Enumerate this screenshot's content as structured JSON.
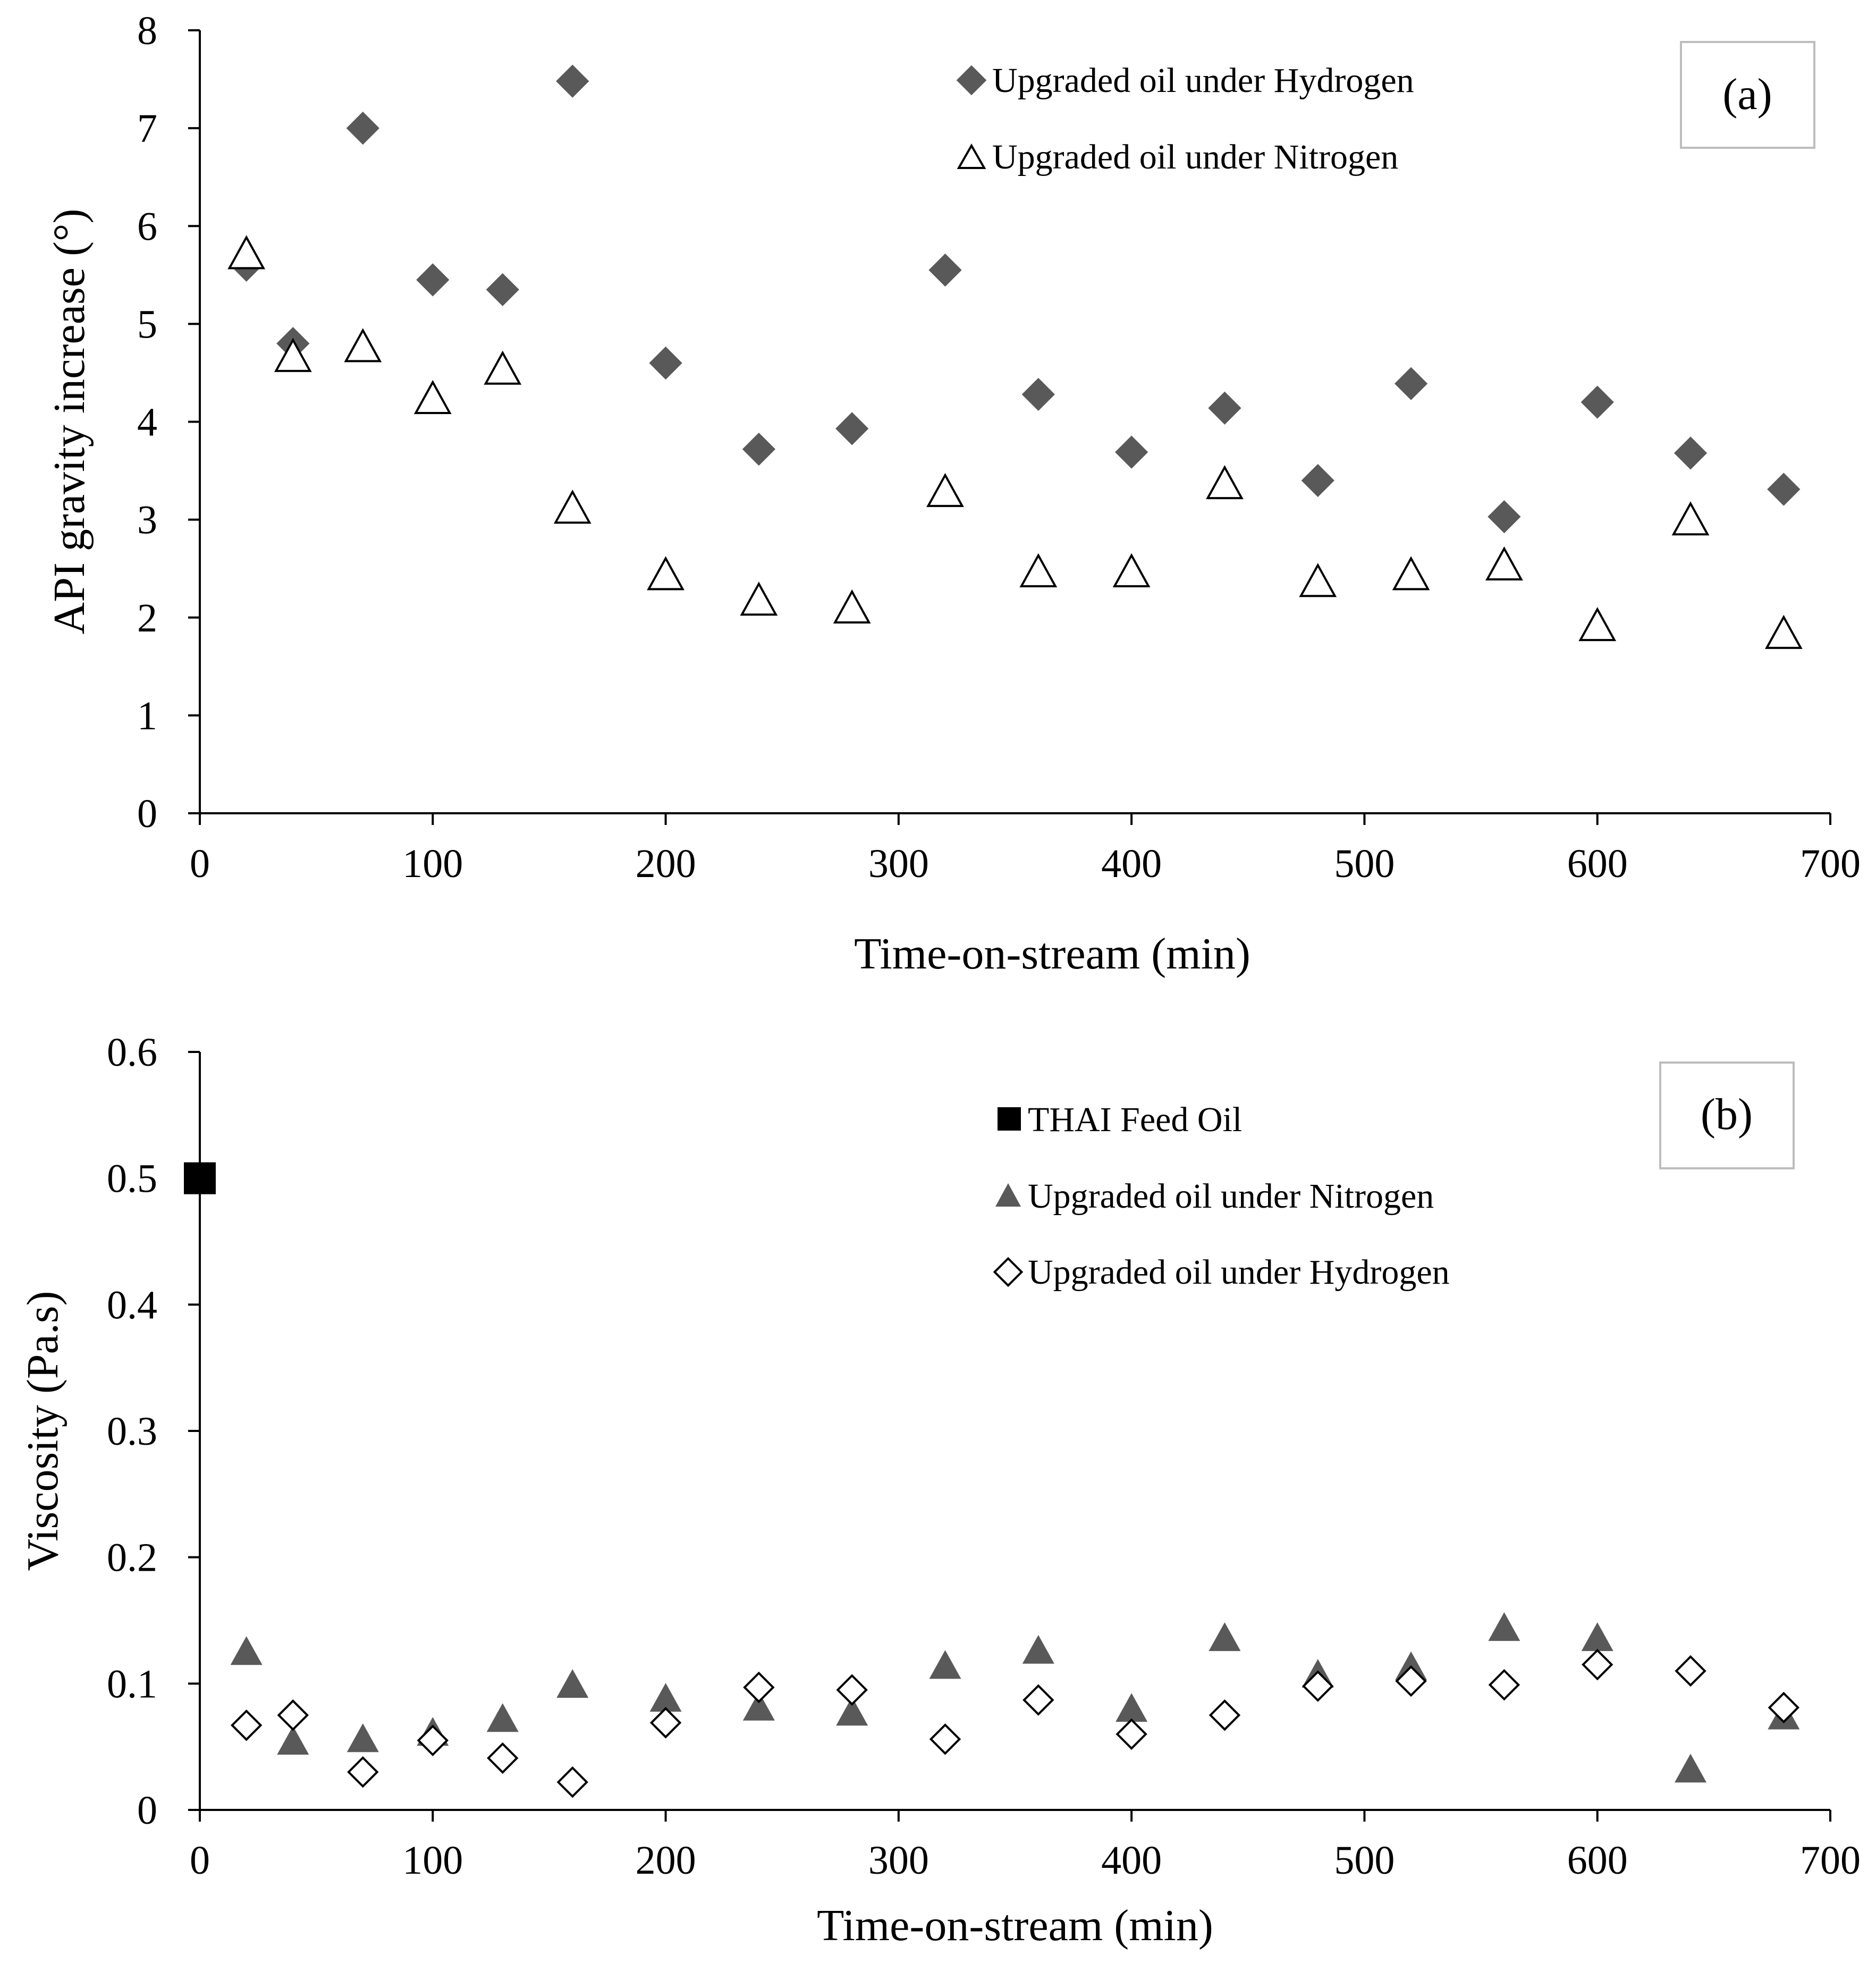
{
  "chart_data": [
    {
      "type": "scatter",
      "panel_label": "(a)",
      "xlabel": "Time-on-stream (min)",
      "ylabel": "API gravity increase (°)",
      "xlim": [
        0,
        700
      ],
      "ylim": [
        0,
        8
      ],
      "xticks": [
        "0",
        "100",
        "200",
        "300",
        "400",
        "500",
        "600",
        "700"
      ],
      "yticks": [
        "0",
        "1",
        "2",
        "3",
        "4",
        "5",
        "6",
        "7",
        "8"
      ],
      "legend_position": "top-right",
      "series": [
        {
          "name": "Upgraded oil under Hydrogen",
          "marker": "diamond-filled",
          "color": "#595959",
          "x": [
            20,
            40,
            70,
            100,
            130,
            160,
            200,
            240,
            280,
            320,
            360,
            400,
            440,
            480,
            520,
            560,
            600,
            640,
            680
          ],
          "y": [
            5.6,
            4.8,
            7.0,
            5.45,
            5.35,
            7.48,
            4.6,
            3.72,
            3.93,
            5.55,
            4.28,
            3.69,
            4.14,
            3.4,
            4.39,
            3.03,
            4.2,
            3.68,
            3.31
          ]
        },
        {
          "name": "Upgraded oil under Nitrogen",
          "marker": "triangle-open",
          "color": "#000000",
          "x": [
            20,
            40,
            70,
            100,
            130,
            160,
            200,
            240,
            280,
            320,
            360,
            400,
            440,
            480,
            520,
            560,
            600,
            640,
            680
          ],
          "y": [
            5.7,
            4.65,
            4.75,
            4.22,
            4.52,
            3.1,
            2.42,
            2.16,
            2.08,
            3.27,
            2.45,
            2.45,
            3.35,
            2.35,
            2.42,
            2.52,
            1.9,
            2.98,
            1.82
          ]
        }
      ]
    },
    {
      "type": "scatter",
      "panel_label": "(b)",
      "xlabel": "Time-on-stream (min)",
      "ylabel": "Viscosity (Pa.s)",
      "xlim": [
        0,
        700
      ],
      "ylim": [
        0,
        0.6
      ],
      "xticks": [
        "0",
        "100",
        "200",
        "300",
        "400",
        "500",
        "600",
        "700"
      ],
      "yticks": [
        "0",
        "0.1",
        "0.2",
        "0.3",
        "0.4",
        "0.5",
        "0.6"
      ],
      "legend_position": "top-right",
      "series": [
        {
          "name": "THAI Feed Oil",
          "marker": "square-filled",
          "color": "#000000",
          "x": [
            0
          ],
          "y": [
            0.5
          ]
        },
        {
          "name": "Upgraded oil under Nitrogen",
          "marker": "triangle-filled",
          "color": "#595959",
          "x": [
            20,
            40,
            70,
            100,
            130,
            160,
            200,
            240,
            280,
            320,
            360,
            400,
            440,
            480,
            520,
            560,
            600,
            640,
            680
          ],
          "y": [
            0.124,
            0.053,
            0.055,
            0.06,
            0.071,
            0.098,
            0.087,
            0.08,
            0.076,
            0.113,
            0.125,
            0.079,
            0.135,
            0.106,
            0.112,
            0.143,
            0.135,
            0.031,
            0.073
          ]
        },
        {
          "name": "Upgraded oil under Hydrogen",
          "marker": "diamond-open",
          "color": "#000000",
          "x": [
            20,
            40,
            70,
            100,
            130,
            160,
            200,
            240,
            280,
            320,
            360,
            400,
            440,
            480,
            520,
            560,
            600,
            640,
            680
          ],
          "y": [
            0.067,
            0.075,
            0.03,
            0.055,
            0.041,
            0.022,
            0.069,
            0.097,
            0.095,
            0.056,
            0.087,
            0.06,
            0.075,
            0.098,
            0.102,
            0.099,
            0.115,
            0.11,
            0.081
          ]
        }
      ]
    }
  ]
}
